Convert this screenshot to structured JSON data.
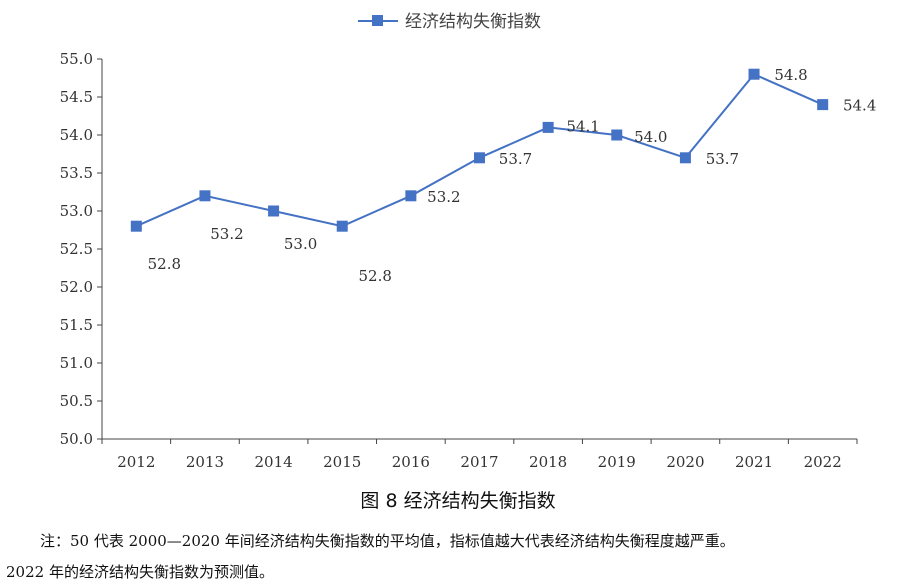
{
  "chart_data": {
    "type": "line",
    "legend": "经济结构失衡指数",
    "legend_position": "top",
    "categories": [
      "2012",
      "2013",
      "2014",
      "2015",
      "2016",
      "2017",
      "2018",
      "2019",
      "2020",
      "2021",
      "2022"
    ],
    "series": [
      {
        "name": "经济结构失衡指数",
        "values": [
          52.8,
          53.2,
          53.0,
          52.8,
          53.2,
          53.7,
          54.1,
          54.0,
          53.7,
          54.8,
          54.4
        ],
        "labels": [
          "52.8",
          "53.2",
          "53.0",
          "52.8",
          "53.2",
          "53.7",
          "54.1",
          "54.0",
          "53.7",
          "54.8",
          "54.4"
        ]
      }
    ],
    "ylim": [
      50.0,
      55.0
    ],
    "yticks": [
      "50.0",
      "50.5",
      "51.0",
      "51.5",
      "52.0",
      "52.5",
      "53.0",
      "53.5",
      "54.0",
      "54.5",
      "55.0"
    ],
    "grid": false,
    "colors": {
      "line": "#4472C4",
      "marker": "#4472C4"
    }
  },
  "caption": "图 8  经济结构失衡指数",
  "note_line1": "注：50 代表 2000—2020 年间经济结构失衡指数的平均值，指标值越大代表经济结构失衡程度越严重。",
  "note_line2": "2022 年的经济结构失衡指数为预测值。"
}
